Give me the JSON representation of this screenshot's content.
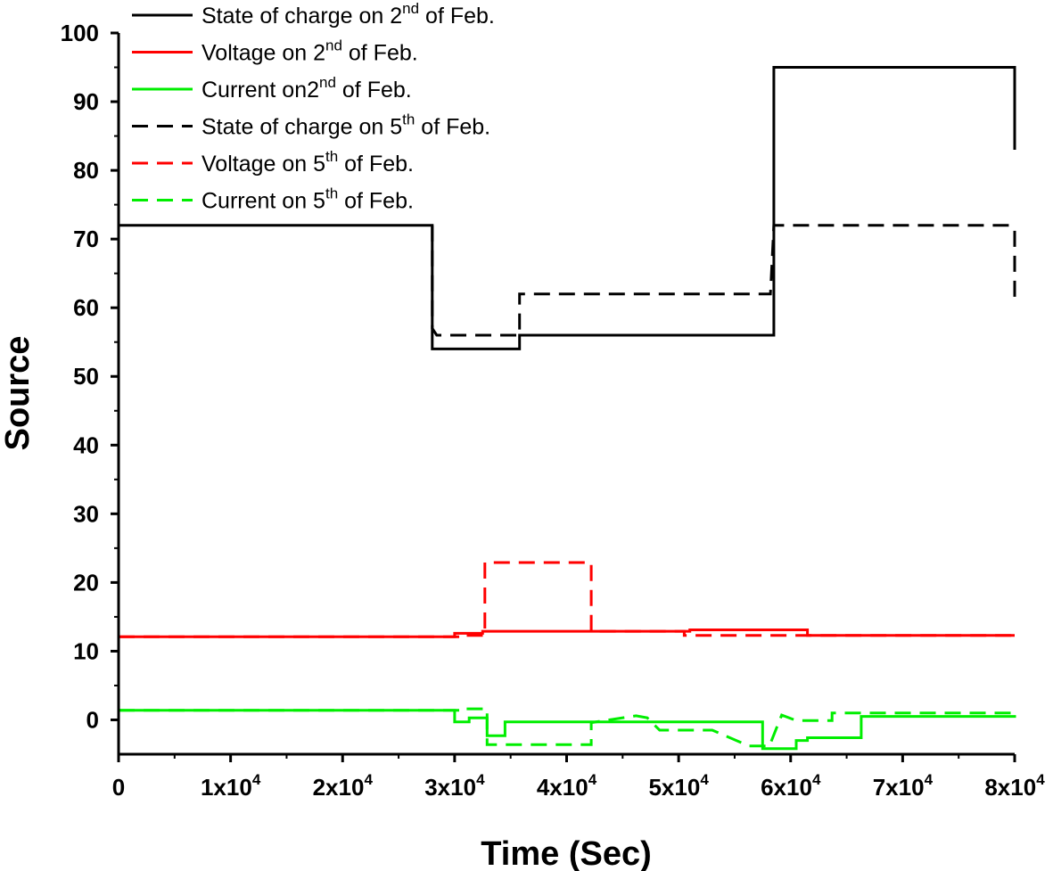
{
  "chart_data": {
    "type": "line",
    "xlabel": "Time (Sec)",
    "ylabel": "Source",
    "xlim": [
      0,
      80000
    ],
    "ylim": [
      -5,
      100
    ],
    "x_ticks": [
      {
        "value": 0,
        "base": "0",
        "exp": ""
      },
      {
        "value": 10000,
        "base": "1x10",
        "exp": "4"
      },
      {
        "value": 20000,
        "base": "2x10",
        "exp": "4"
      },
      {
        "value": 30000,
        "base": "3x10",
        "exp": "4"
      },
      {
        "value": 40000,
        "base": "4x10",
        "exp": "4"
      },
      {
        "value": 50000,
        "base": "5x10",
        "exp": "4"
      },
      {
        "value": 60000,
        "base": "6x10",
        "exp": "4"
      },
      {
        "value": 70000,
        "base": "7x10",
        "exp": "4"
      },
      {
        "value": 80000,
        "base": "8x10",
        "exp": "4"
      }
    ],
    "y_ticks": [
      0,
      10,
      20,
      30,
      40,
      50,
      60,
      70,
      80,
      90,
      100
    ],
    "legend_position": "top-left",
    "series": [
      {
        "name": "State of charge on 2nd of Feb.",
        "label_parts": [
          "State of charge on 2",
          "nd",
          " of Feb."
        ],
        "color": "#000000",
        "dash": "solid",
        "points": [
          [
            0,
            72
          ],
          [
            28000,
            72
          ],
          [
            28000,
            54
          ],
          [
            35800,
            54
          ],
          [
            35800,
            56
          ],
          [
            58500,
            56
          ],
          [
            58500,
            95
          ],
          [
            80000,
            95
          ],
          [
            80000,
            83
          ]
        ]
      },
      {
        "name": "Voltage on 2nd of Feb.",
        "label_parts": [
          "Voltage on 2",
          "nd",
          " of Feb."
        ],
        "color": "#ff0000",
        "dash": "solid",
        "points": [
          [
            0,
            12.1
          ],
          [
            30000,
            12.1
          ],
          [
            30000,
            12.6
          ],
          [
            32500,
            12.6
          ],
          [
            32500,
            12.9
          ],
          [
            51000,
            12.9
          ],
          [
            51000,
            13.1
          ],
          [
            61500,
            13.1
          ],
          [
            61500,
            12.3
          ],
          [
            80000,
            12.3
          ]
        ]
      },
      {
        "name": "Current on2nd of Feb.",
        "label_parts": [
          "Current on2",
          "nd",
          " of Feb."
        ],
        "color": "#00ee00",
        "dash": "solid",
        "points": [
          [
            0,
            1.4
          ],
          [
            30000,
            1.4
          ],
          [
            30000,
            -0.3
          ],
          [
            31300,
            -0.3
          ],
          [
            31300,
            0.3
          ],
          [
            32900,
            0.3
          ],
          [
            32900,
            -2.3
          ],
          [
            34500,
            -2.3
          ],
          [
            34500,
            -0.3
          ],
          [
            57500,
            -0.3
          ],
          [
            57500,
            -4.2
          ],
          [
            60500,
            -4.2
          ],
          [
            60500,
            -3
          ],
          [
            61500,
            -3
          ],
          [
            61500,
            -2.6
          ],
          [
            66300,
            -2.6
          ],
          [
            66300,
            0.5
          ],
          [
            80000,
            0.5
          ],
          [
            80000,
            0.7
          ]
        ]
      },
      {
        "name": "State of charge on 5th of Feb.",
        "label_parts": [
          "State of charge on 5",
          "th",
          " of Feb."
        ],
        "color": "#000000",
        "dash": "dashed",
        "points": [
          [
            28000,
            72
          ],
          [
            28000,
            57
          ],
          [
            28400,
            56
          ],
          [
            35800,
            56
          ],
          [
            35800,
            62
          ],
          [
            58200,
            62
          ],
          [
            58500,
            72
          ],
          [
            79500,
            72
          ],
          [
            80000,
            71.5
          ],
          [
            80000,
            61
          ]
        ]
      },
      {
        "name": "Voltage on 5th of Feb.",
        "label_parts": [
          "Voltage on 5",
          "th",
          " of Feb."
        ],
        "color": "#ff0000",
        "dash": "dashed",
        "points": [
          [
            0,
            12.1
          ],
          [
            31000,
            12.1
          ],
          [
            31000,
            12.3
          ],
          [
            32700,
            12.3
          ],
          [
            32700,
            22.9
          ],
          [
            42200,
            22.9
          ],
          [
            42200,
            12.9
          ],
          [
            50500,
            12.9
          ],
          [
            50500,
            12.3
          ],
          [
            80000,
            12.3
          ]
        ]
      },
      {
        "name": "Current on 5th of Feb.",
        "label_parts": [
          "Current on 5",
          "th",
          " of Feb."
        ],
        "color": "#00ee00",
        "dash": "dashed",
        "points": [
          [
            0,
            1.4
          ],
          [
            31000,
            1.4
          ],
          [
            31000,
            1.6
          ],
          [
            32900,
            1.6
          ],
          [
            32900,
            -3.6
          ],
          [
            42200,
            -3.6
          ],
          [
            42200,
            -0.4
          ],
          [
            46200,
            0.6
          ],
          [
            47200,
            0.3
          ],
          [
            48300,
            -1.5
          ],
          [
            53000,
            -1.5
          ],
          [
            56300,
            -3.8
          ],
          [
            58100,
            -3.8
          ],
          [
            59200,
            0.7
          ],
          [
            60500,
            -0.1
          ],
          [
            63700,
            -0.1
          ],
          [
            63700,
            1
          ],
          [
            80000,
            1
          ]
        ]
      }
    ]
  }
}
